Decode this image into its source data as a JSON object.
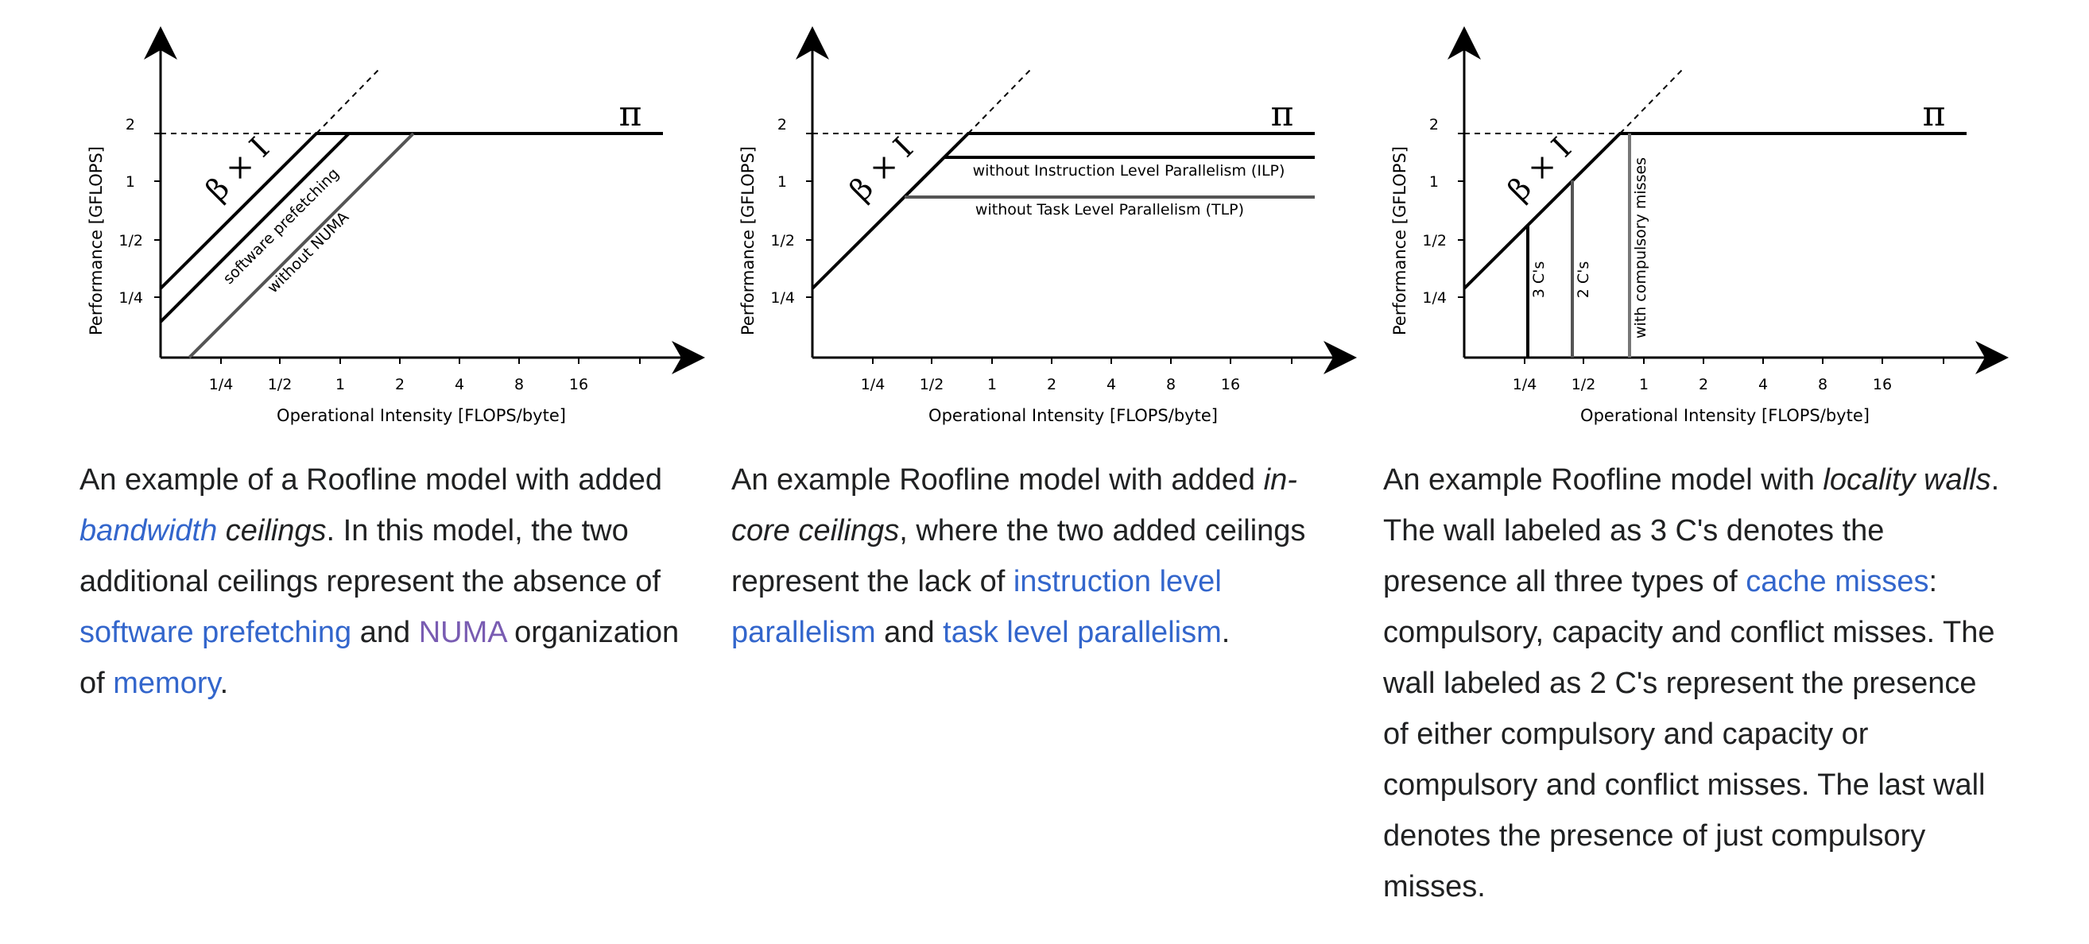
{
  "figures": [
    {
      "id": "bandwidth",
      "ylabel": "Performance [GFLOPS]",
      "xlabel": "Operational Intensity [FLOPS/byte]",
      "y_ticks": [
        "2",
        "1",
        "1/2",
        "1/4"
      ],
      "x_ticks": [
        "1/4",
        "1/2",
        "1",
        "2",
        "4",
        "8",
        "16"
      ],
      "roof_label": "π",
      "slope_label": "β × I",
      "ceilings": [
        "software prefetching",
        "without NUMA"
      ]
    },
    {
      "id": "incore",
      "ylabel": "Performance [GFLOPS]",
      "xlabel": "Operational Intensity [FLOPS/byte]",
      "y_ticks": [
        "2",
        "1",
        "1/2",
        "1/4"
      ],
      "x_ticks": [
        "1/4",
        "1/2",
        "1",
        "2",
        "4",
        "8",
        "16"
      ],
      "roof_label": "π",
      "slope_label": "β × I",
      "ceilings": [
        "without Instruction Level Parallelism (ILP)",
        "without Task Level Parallelism (TLP)"
      ]
    },
    {
      "id": "locality",
      "ylabel": "Performance [GFLOPS]",
      "xlabel": "Operational Intensity [FLOPS/byte]",
      "y_ticks": [
        "2",
        "1",
        "1/2",
        "1/4"
      ],
      "x_ticks": [
        "1/4",
        "1/2",
        "1",
        "2",
        "4",
        "8",
        "16"
      ],
      "roof_label": "π",
      "slope_label": "β × I",
      "walls": [
        "3 C's",
        "2 C's",
        "with compulsory misses"
      ]
    }
  ],
  "captions": {
    "c1": {
      "t1": "An example of a Roofline model with added ",
      "l1": "bandwidth",
      "t2": " ceilings",
      "t3": ". In this model, the two additional ceilings represent the absence of ",
      "l2": "software prefetching",
      "t4": " and ",
      "l3": "NUMA",
      "t5": " organization of ",
      "l4": "memory",
      "t6": "."
    },
    "c2": {
      "t1": "An example Roofline model with added ",
      "t2": "in-core ceilings",
      "t3": ", where the two added ceilings represent the lack of ",
      "l1": "instruction level parallelism",
      "t4": " and ",
      "l2": "task level parallelism",
      "t5": "."
    },
    "c3": {
      "t1": "An example Roofline model with ",
      "t2": "locality walls",
      "t3": ". The wall labeled as 3 C's denotes the presence all three types of ",
      "l1": "cache misses",
      "t4": ": compulsory, capacity and conflict misses. The wall labeled as 2 C's represent the presence of either compulsory and capacity or compulsory and conflict misses. The last wall denotes the presence of just compulsory misses."
    }
  }
}
